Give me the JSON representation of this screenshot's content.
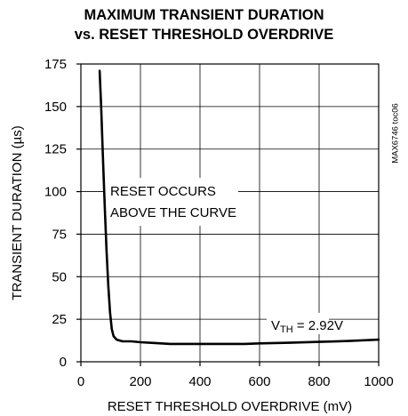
{
  "side_label": "MAX6746 toc06",
  "chart_data": {
    "type": "line",
    "title": "MAXIMUM TRANSIENT DURATION",
    "subtitle": "vs. RESET THRESHOLD OVERDRIVE",
    "xlabel": "RESET THRESHOLD OVERDRIVE (mV)",
    "ylabel": "TRANSIENT DURATION (µs)",
    "xlim": [
      0,
      1000
    ],
    "ylim": [
      0,
      175
    ],
    "xticks": [
      0,
      200,
      400,
      600,
      800,
      1000
    ],
    "yticks": [
      0,
      25,
      50,
      75,
      100,
      125,
      150,
      175
    ],
    "xtick_labels": [
      "0",
      "200",
      "400",
      "600",
      "800",
      "1000"
    ],
    "ytick_labels": [
      "0",
      "25",
      "50",
      "75",
      "100",
      "125",
      "150",
      "175"
    ],
    "grid": true,
    "series": [
      {
        "x": [
          63,
          68,
          74,
          80,
          86,
          92,
          98,
          104,
          110,
          120,
          140,
          170,
          200,
          250,
          300,
          350,
          400,
          450,
          500,
          550,
          600,
          700,
          800,
          900,
          1000
        ],
        "y": [
          171,
          150,
          120,
          92,
          66,
          45,
          29,
          19,
          15,
          13,
          12,
          12,
          11.5,
          11,
          10.5,
          10.5,
          10.5,
          10.5,
          10.5,
          10.5,
          10.8,
          11.2,
          11.7,
          12.2,
          13
        ]
      }
    ],
    "annotations": {
      "region_line1": "RESET OCCURS",
      "region_line2": "ABOVE THE CURVE",
      "vth_symbol": "V",
      "vth_subscript": "TH",
      "vth_value": " = 2.92V"
    }
  }
}
